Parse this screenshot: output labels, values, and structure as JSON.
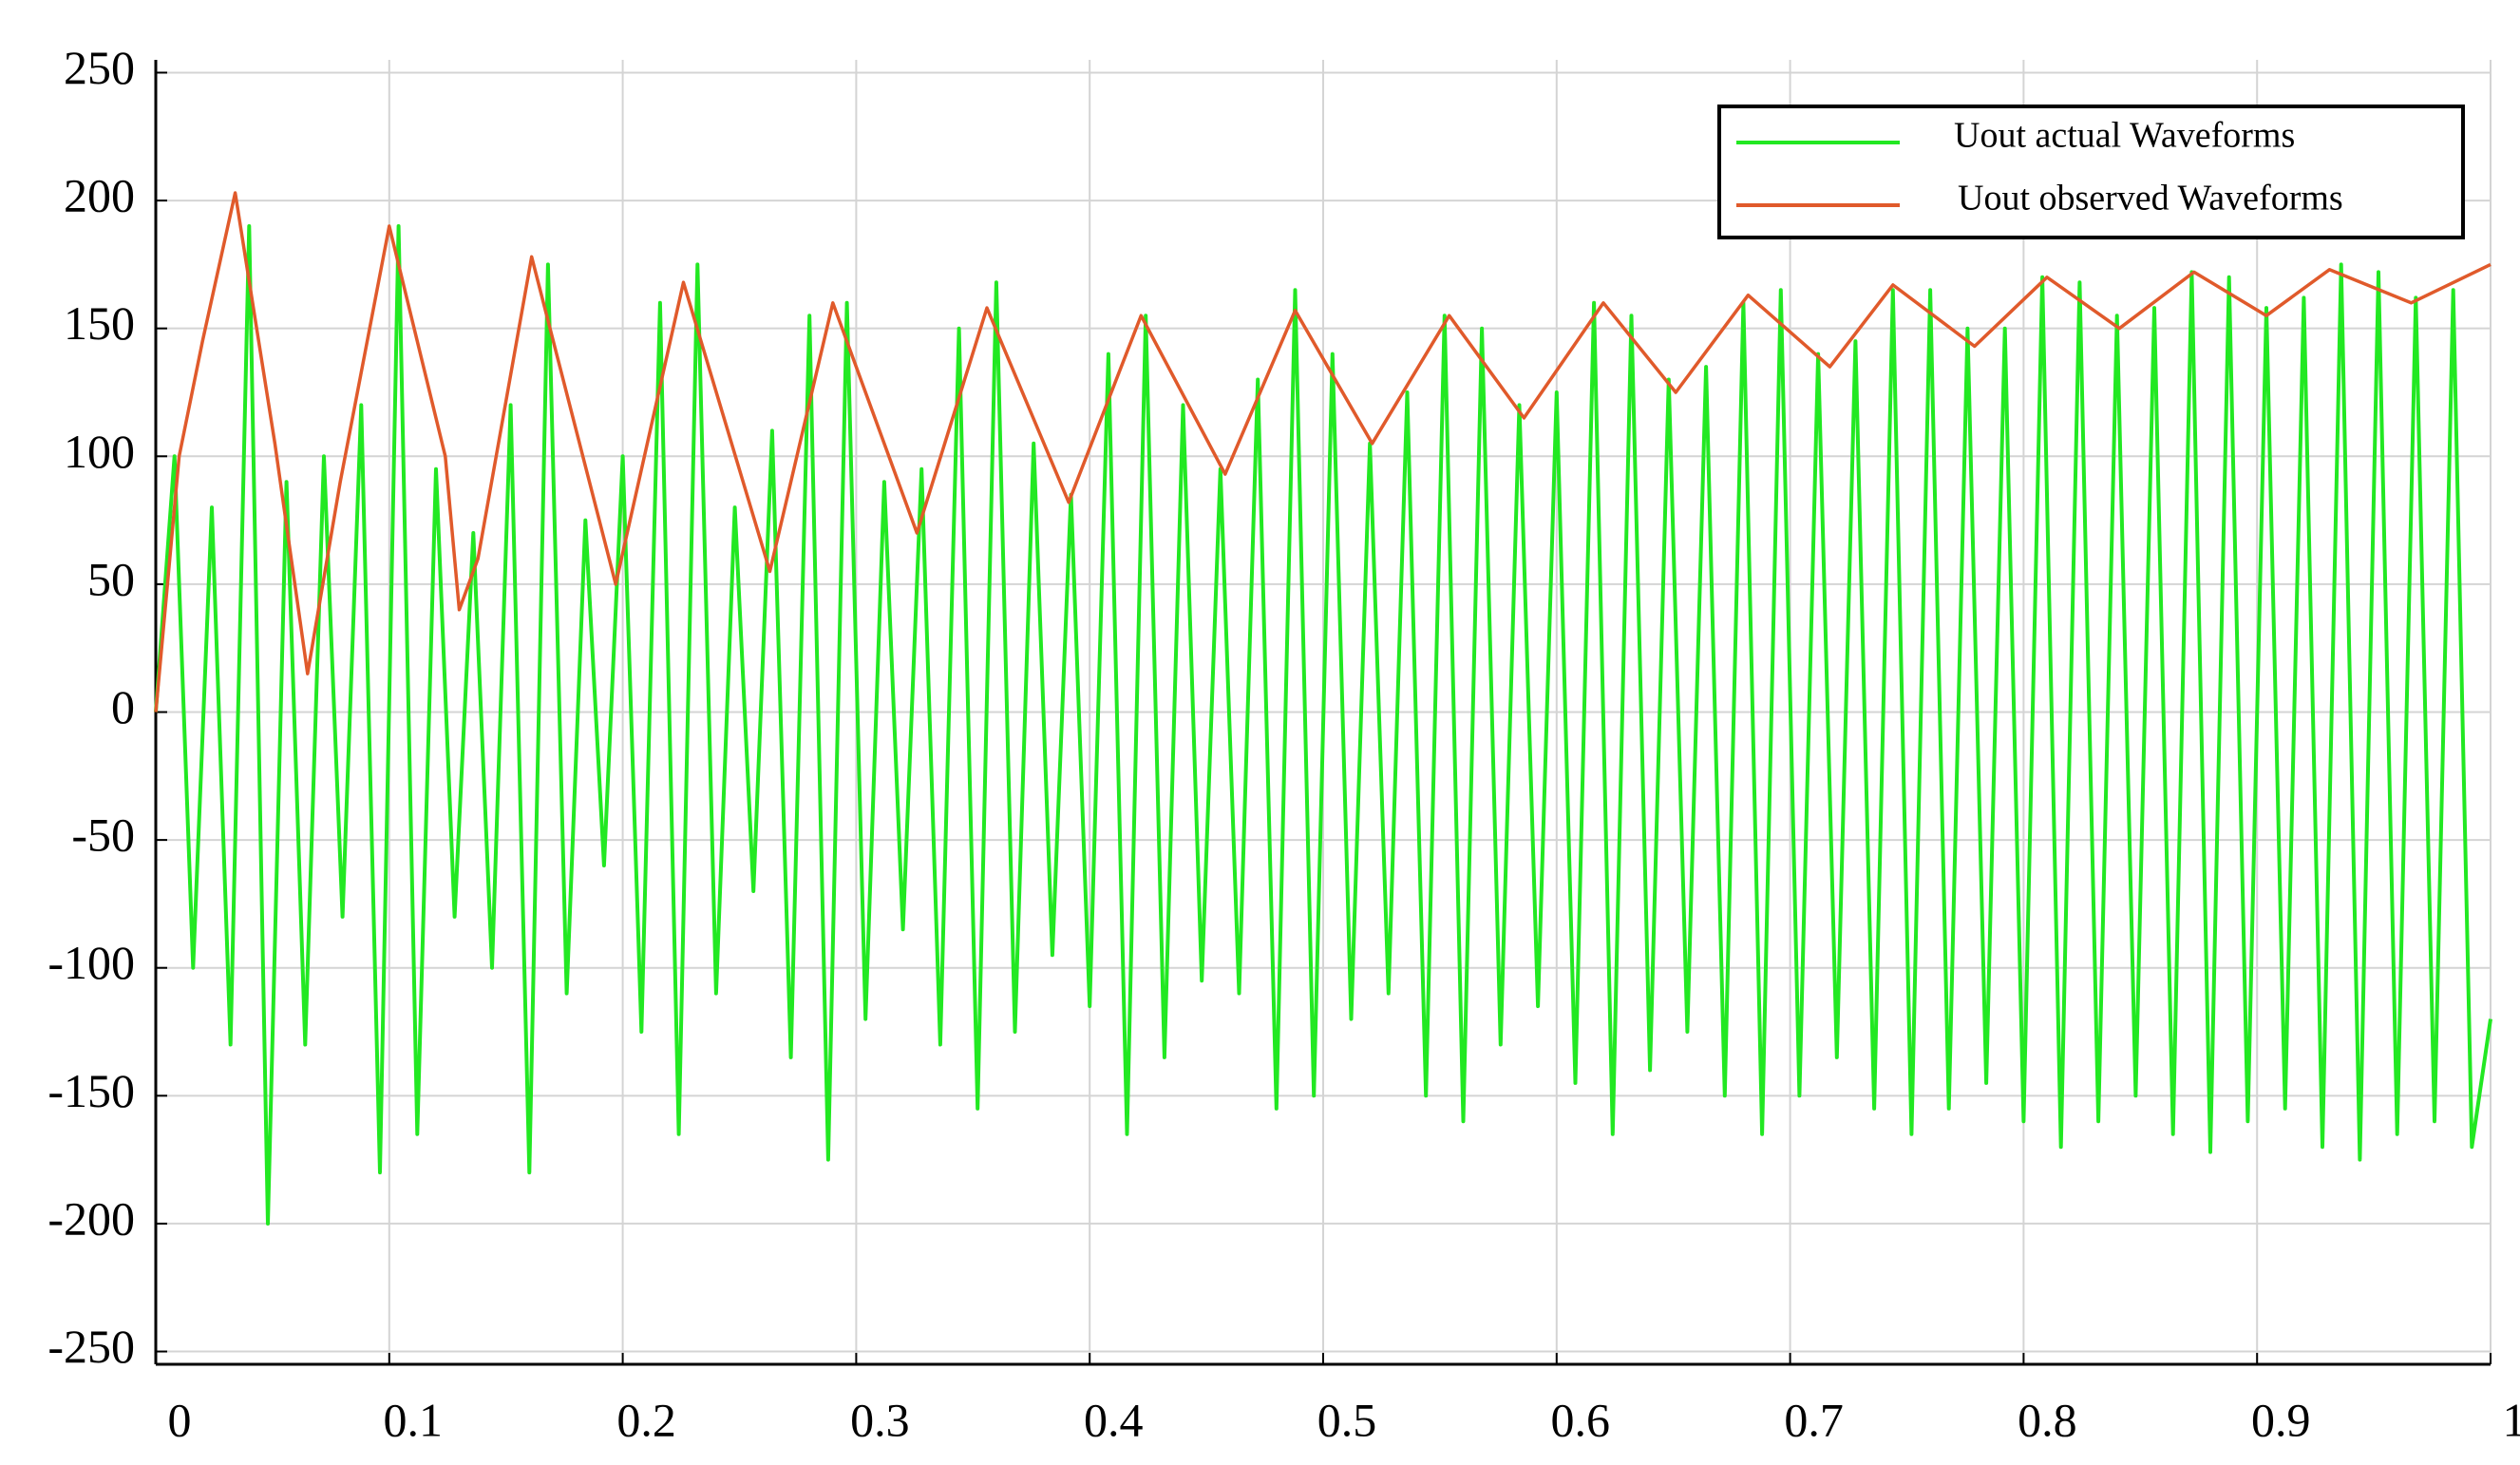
{
  "chart_data": {
    "type": "line",
    "xlim": [
      0,
      1
    ],
    "xticks": [
      0,
      0.1,
      0.2,
      0.3,
      0.4,
      0.5,
      0.6,
      0.7,
      0.8,
      0.9,
      1
    ],
    "ylim": [
      -255,
      255
    ],
    "yticks": [
      -250,
      -200,
      -150,
      -100,
      -50,
      0,
      50,
      100,
      150,
      200,
      250
    ],
    "grid": true,
    "legend": "upper right",
    "series": [
      {
        "name": "Uout actual Waveforms",
        "color": "#22e822",
        "x": [
          0,
          0.008,
          0.016,
          0.024,
          0.032,
          0.04,
          0.048,
          0.056,
          0.064,
          0.072,
          0.08,
          0.088,
          0.096,
          0.104,
          0.112,
          0.12,
          0.128,
          0.136,
          0.144,
          0.152,
          0.16,
          0.168,
          0.176,
          0.184,
          0.192,
          0.2,
          0.208,
          0.216,
          0.224,
          0.232,
          0.24,
          0.248,
          0.256,
          0.264,
          0.272,
          0.28,
          0.288,
          0.296,
          0.304,
          0.312,
          0.32,
          0.328,
          0.336,
          0.344,
          0.352,
          0.36,
          0.368,
          0.376,
          0.384,
          0.392,
          0.4,
          0.408,
          0.416,
          0.424,
          0.432,
          0.44,
          0.448,
          0.456,
          0.464,
          0.472,
          0.48,
          0.488,
          0.496,
          0.504,
          0.512,
          0.52,
          0.528,
          0.536,
          0.544,
          0.552,
          0.56,
          0.568,
          0.576,
          0.584,
          0.592,
          0.6,
          0.608,
          0.616,
          0.624,
          0.632,
          0.64,
          0.648,
          0.656,
          0.664,
          0.672,
          0.68,
          0.688,
          0.696,
          0.704,
          0.712,
          0.72,
          0.728,
          0.736,
          0.744,
          0.752,
          0.76,
          0.768,
          0.776,
          0.784,
          0.792,
          0.8,
          0.808,
          0.816,
          0.824,
          0.832,
          0.84,
          0.848,
          0.856,
          0.864,
          0.872,
          0.88,
          0.888,
          0.896,
          0.904,
          0.912,
          0.92,
          0.928,
          0.936,
          0.944,
          0.952,
          0.96,
          0.968,
          0.976,
          0.984,
          0.992,
          1
        ],
        "values": [
          0,
          100,
          -100,
          80,
          -130,
          190,
          -200,
          90,
          -130,
          100,
          -80,
          120,
          -180,
          190,
          -165,
          95,
          -80,
          70,
          -100,
          120,
          -180,
          175,
          -110,
          75,
          -60,
          100,
          -125,
          160,
          -165,
          175,
          -110,
          80,
          -70,
          110,
          -135,
          155,
          -175,
          160,
          -120,
          90,
          -85,
          95,
          -130,
          150,
          -155,
          168,
          -125,
          105,
          -95,
          85,
          -115,
          140,
          -165,
          155,
          -135,
          120,
          -105,
          95,
          -110,
          130,
          -155,
          165,
          -150,
          140,
          -120,
          105,
          -110,
          125,
          -150,
          155,
          -160,
          150,
          -130,
          120,
          -115,
          125,
          -145,
          160,
          -165,
          155,
          -140,
          130,
          -125,
          135,
          -150,
          160,
          -165,
          165,
          -150,
          140,
          -135,
          145,
          -155,
          165,
          -165,
          165,
          -155,
          150,
          -145,
          150,
          -160,
          170,
          -170,
          168,
          -160,
          155,
          -150,
          158,
          -165,
          172,
          -172,
          170,
          -160,
          158,
          -155,
          162,
          -170,
          175,
          -175,
          172,
          -165,
          162,
          -160,
          165,
          -170,
          -120
        ]
      },
      {
        "name": "Uout observed Waveforms",
        "color": "#e05a2b",
        "x": [
          0,
          0.01,
          0.02,
          0.034,
          0.051,
          0.065,
          0.079,
          0.1,
          0.124,
          0.13,
          0.138,
          0.161,
          0.197,
          0.226,
          0.263,
          0.29,
          0.326,
          0.356,
          0.391,
          0.422,
          0.458,
          0.488,
          0.521,
          0.554,
          0.586,
          0.62,
          0.651,
          0.682,
          0.717,
          0.744,
          0.779,
          0.81,
          0.841,
          0.873,
          0.904,
          0.931,
          0.966,
          1
        ],
        "values": [
          0,
          100,
          145,
          203,
          105,
          15,
          90,
          190,
          100,
          40,
          60,
          178,
          50,
          168,
          55,
          160,
          70,
          158,
          82,
          155,
          93,
          157,
          105,
          155,
          115,
          160,
          125,
          163,
          135,
          167,
          143,
          170,
          150,
          172,
          155,
          173,
          160,
          175
        ]
      }
    ]
  }
}
